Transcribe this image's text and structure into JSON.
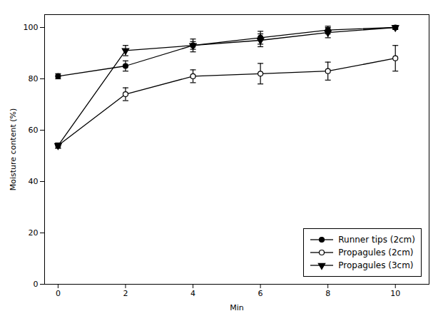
{
  "chart_data": {
    "type": "line",
    "x": [
      0,
      2,
      4,
      6,
      8,
      10
    ],
    "xlabel": "Min",
    "ylabel": "Moisture content (%)",
    "xlim": [
      -0.4,
      11.0
    ],
    "ylim": [
      0,
      105
    ],
    "xticks": [
      0,
      2,
      4,
      6,
      8,
      10
    ],
    "yticks": [
      0,
      20,
      40,
      60,
      80,
      100
    ],
    "grid": false,
    "legend": "lower right",
    "series": [
      {
        "name": "Runner tips (2cm)",
        "color": "#000000",
        "marker": "circle",
        "line_style": "solid",
        "values": [
          81,
          85,
          93,
          96,
          99,
          100
        ],
        "errors": [
          1.0,
          2.0,
          1.5,
          2.5,
          1.5,
          0.5
        ]
      },
      {
        "name": "Propagules (2cm)",
        "color": "#000000",
        "marker": "circle-open",
        "line_style": "solid",
        "values": [
          54,
          74,
          81,
          82,
          83,
          88
        ],
        "errors": [
          1.0,
          2.5,
          2.5,
          4.0,
          3.5,
          5.0
        ]
      },
      {
        "name": "Propagules (3cm)",
        "color": "#000000",
        "marker": "triangle-down",
        "line_style": "solid",
        "values": [
          54,
          91,
          93,
          95,
          98,
          100
        ],
        "errors": [
          1.0,
          2.0,
          2.5,
          2.5,
          2.0,
          0.8
        ]
      }
    ]
  }
}
